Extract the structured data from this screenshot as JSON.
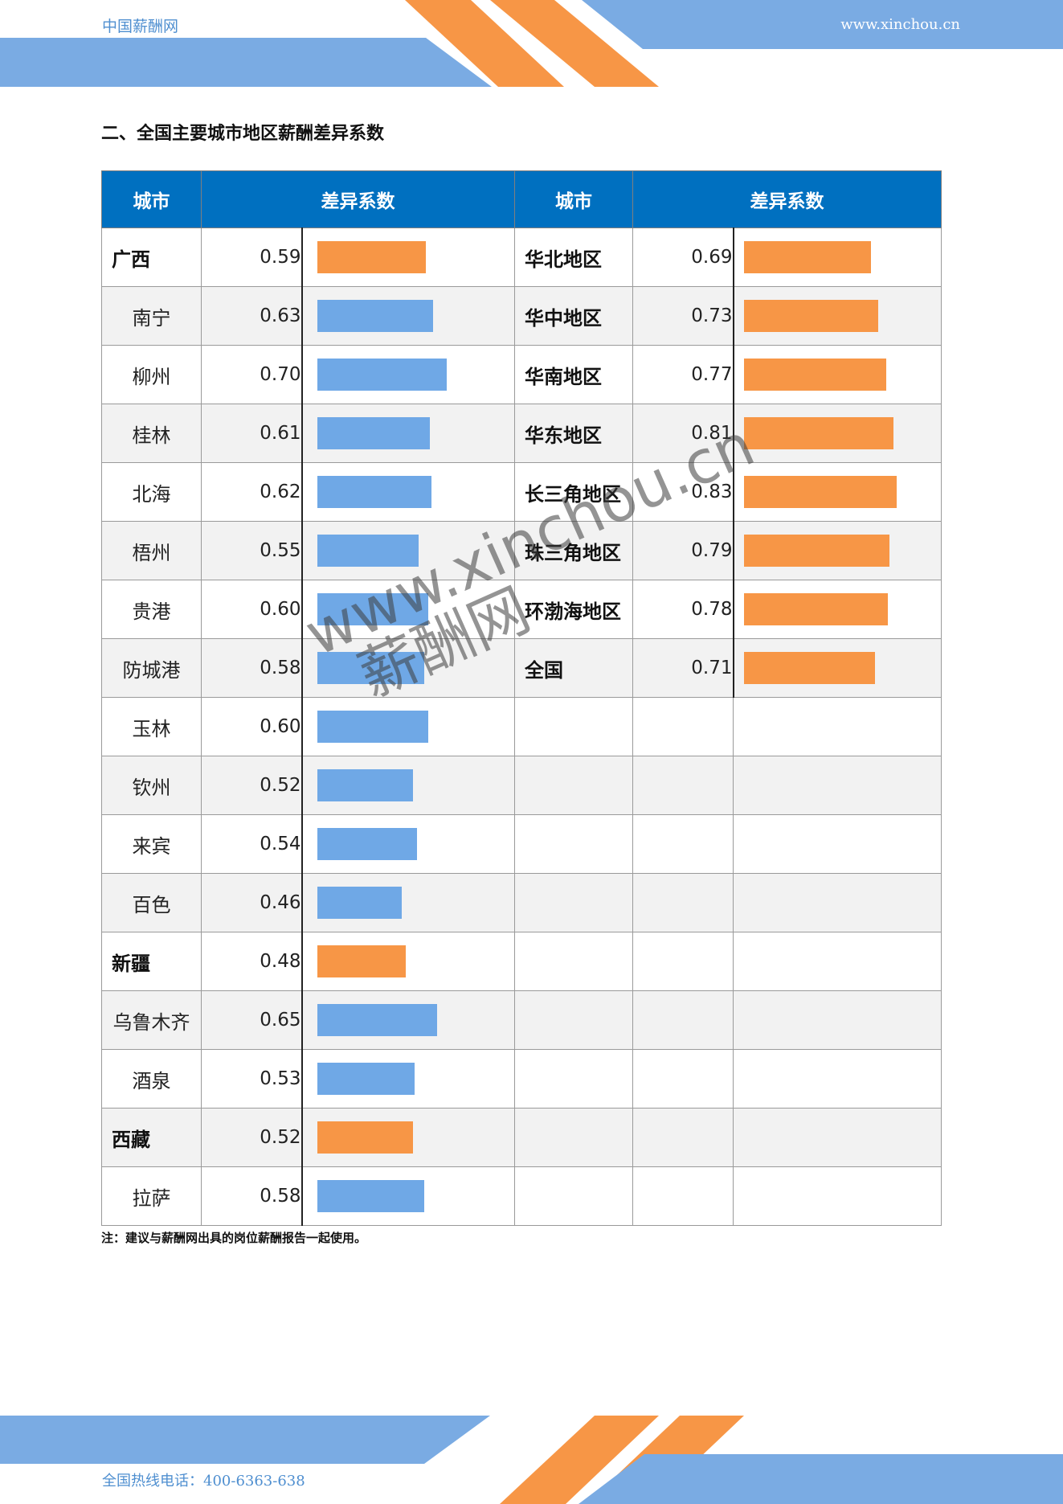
{
  "header": {
    "brand": "中国薪酬网",
    "url": "www.xinchou.cn"
  },
  "section_title": "二、全国主要城市地区薪酬差异系数",
  "table": {
    "col_city": "城市",
    "col_coef": "差异系数",
    "bar_max_value": 1.0,
    "left_rows": [
      {
        "name": "广西",
        "value": "0.59",
        "region": true
      },
      {
        "name": "南宁",
        "value": "0.63",
        "region": false
      },
      {
        "name": "柳州",
        "value": "0.70",
        "region": false
      },
      {
        "name": "桂林",
        "value": "0.61",
        "region": false
      },
      {
        "name": "北海",
        "value": "0.62",
        "region": false
      },
      {
        "name": "梧州",
        "value": "0.55",
        "region": false
      },
      {
        "name": "贵港",
        "value": "0.60",
        "region": false
      },
      {
        "name": "防城港",
        "value": "0.58",
        "region": false
      },
      {
        "name": "玉林",
        "value": "0.60",
        "region": false
      },
      {
        "name": "钦州",
        "value": "0.52",
        "region": false
      },
      {
        "name": "来宾",
        "value": "0.54",
        "region": false
      },
      {
        "name": "百色",
        "value": "0.46",
        "region": false
      },
      {
        "name": "新疆",
        "value": "0.48",
        "region": true
      },
      {
        "name": "乌鲁木齐",
        "value": "0.65",
        "region": false
      },
      {
        "name": "酒泉",
        "value": "0.53",
        "region": false
      },
      {
        "name": "西藏",
        "value": "0.52",
        "region": true
      },
      {
        "name": "拉萨",
        "value": "0.58",
        "region": false
      }
    ],
    "right_rows": [
      {
        "name": "华北地区",
        "value": "0.69"
      },
      {
        "name": "华中地区",
        "value": "0.73"
      },
      {
        "name": "华南地区",
        "value": "0.77"
      },
      {
        "name": "华东地区",
        "value": "0.81"
      },
      {
        "name": "长三角地区",
        "value": "0.83"
      },
      {
        "name": "珠三角地区",
        "value": "0.79"
      },
      {
        "name": "环渤海地区",
        "value": "0.78"
      },
      {
        "name": "全国",
        "value": "0.71"
      }
    ]
  },
  "note": "注：建议与薪酬网出具的岗位薪酬报告一起使用。",
  "watermark": {
    "line1": "www.xinchou.cn",
    "line2": "薪酬网"
  },
  "footer": {
    "phone": "全国热线电话：400-6363-638"
  },
  "colors": {
    "region_bar": "#f79646",
    "city_bar": "#6fa8e6",
    "header_bg": "#0070c0",
    "deco_blue": "#7aabe3",
    "deco_orange": "#f79646"
  }
}
